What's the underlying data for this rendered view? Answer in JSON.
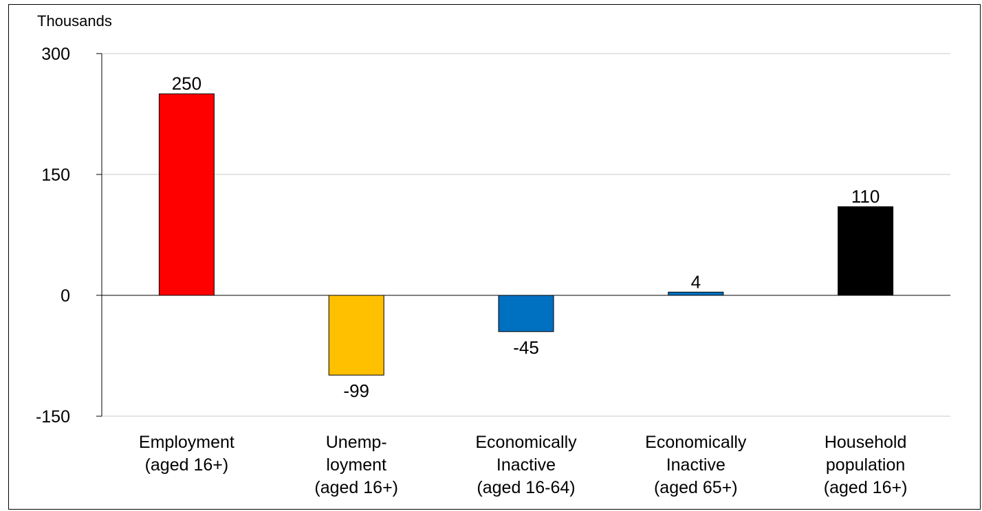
{
  "chart_data": {
    "type": "bar",
    "unit_label": "Thousands",
    "ylim": [
      -150,
      300
    ],
    "yticks": [
      300,
      150,
      0,
      -150
    ],
    "grid": true,
    "categories": [
      [
        "Employment",
        "(aged 16+)"
      ],
      [
        "Unemp-",
        "loyment",
        "(aged 16+)"
      ],
      [
        "Economically",
        "Inactive",
        "(aged 16-64)"
      ],
      [
        "Economically",
        "Inactive",
        "(aged 65+)"
      ],
      [
        "Household",
        "population",
        "(aged 16+)"
      ]
    ],
    "values": [
      250,
      -99,
      -45,
      4,
      110
    ],
    "data_labels": [
      "250",
      "-99",
      "-45",
      "4",
      "110"
    ],
    "colors": [
      "#ff0000",
      "#ffc000",
      "#0070c0",
      "#0070c0",
      "#000000"
    ],
    "gridline_color": "#c8c8c8"
  }
}
